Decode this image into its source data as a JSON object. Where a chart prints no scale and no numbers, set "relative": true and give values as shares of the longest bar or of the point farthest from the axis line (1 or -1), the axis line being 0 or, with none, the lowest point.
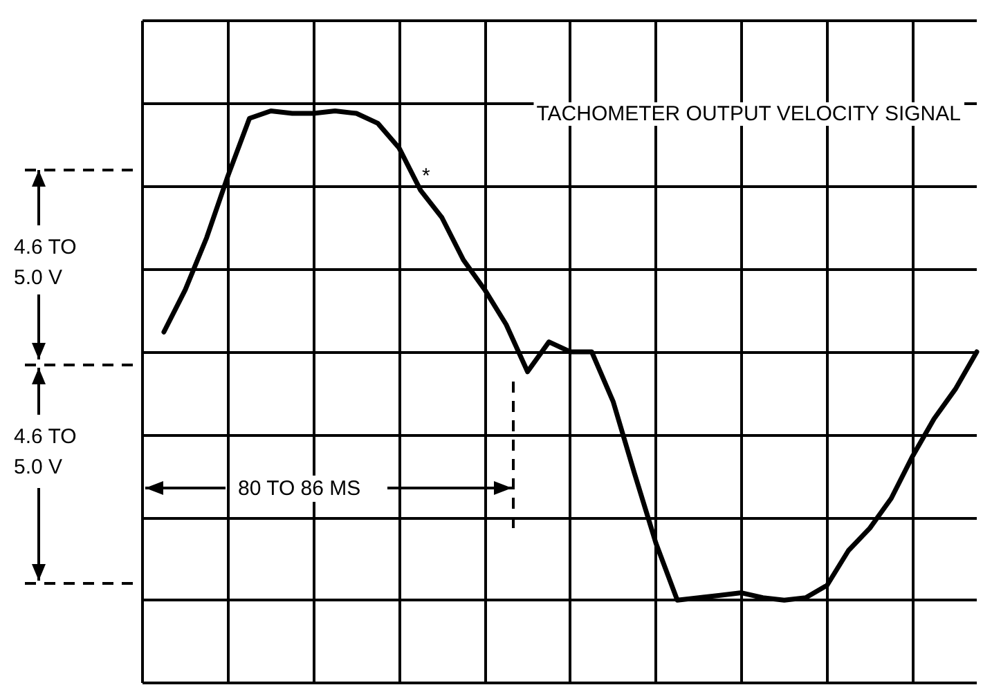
{
  "chart_data": {
    "type": "line",
    "title": "TACHOMETER OUTPUT VELOCITY SIGNAL",
    "relative": true,
    "grid": true,
    "marker": "none",
    "line_style": "solid",
    "annotations": [
      "*",
      "4.6 TO 5.0 V",
      "4.6 TO 5.0 V",
      "80 TO 86 MS"
    ],
    "categories": [
      null,
      null,
      null,
      null,
      null,
      null,
      null,
      null,
      null,
      null,
      null,
      null,
      null,
      null,
      null,
      null,
      null,
      null,
      null,
      null,
      null,
      null,
      null,
      null,
      null,
      null,
      null,
      null,
      null,
      null,
      null,
      null,
      null,
      null,
      null,
      null,
      null,
      null,
      null,
      null
    ],
    "series": [
      {
        "color": "#000000",
        "values": [
          null,
          0.08,
          0.25,
          0.46,
          0.71,
          0.94,
          0.97,
          0.96,
          0.96,
          0.97,
          0.96,
          0.92,
          0.82,
          0.65,
          0.54,
          0.37,
          0.25,
          0.11,
          -0.08,
          0.04,
          0,
          0,
          -0.2,
          -0.49,
          -0.77,
          -1,
          -0.99,
          -0.98,
          -0.97,
          -0.99,
          -1,
          -0.99,
          -0.94,
          -0.8,
          -0.71,
          -0.59,
          -0.42,
          -0.27,
          -0.15,
          0
        ]
      }
    ]
  }
}
